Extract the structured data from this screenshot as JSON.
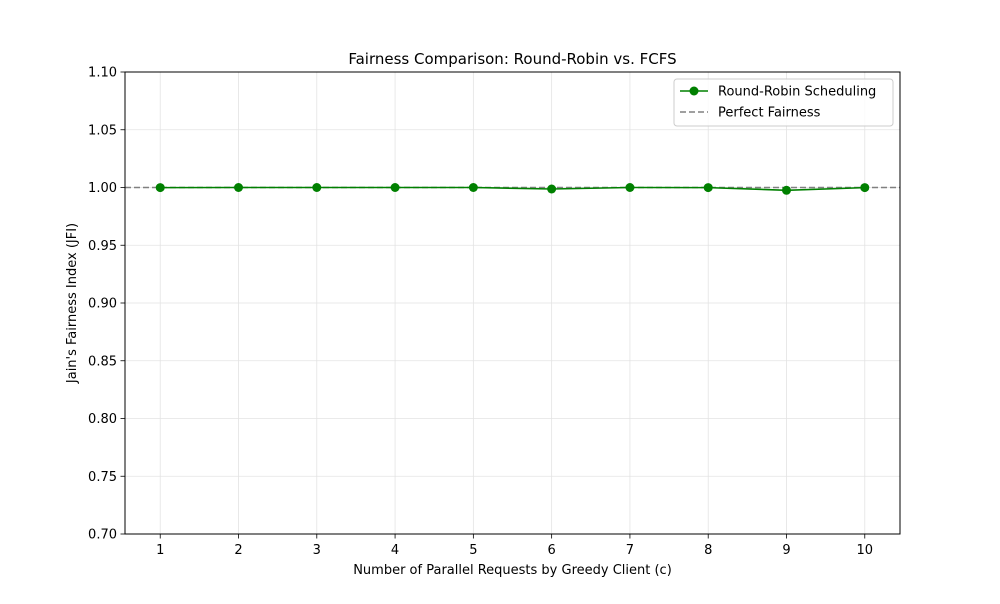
{
  "chart_data": {
    "type": "line",
    "title": "Fairness Comparison: Round-Robin vs. FCFS",
    "xlabel": "Number of Parallel Requests by Greedy Client (c)",
    "ylabel": "Jain's Fairness Index (JFI)",
    "x": [
      1,
      2,
      3,
      4,
      5,
      6,
      7,
      8,
      9,
      10
    ],
    "xlim": [
      0.55,
      10.45
    ],
    "ylim": [
      0.7,
      1.1
    ],
    "xticks": [
      "1",
      "2",
      "3",
      "4",
      "5",
      "6",
      "7",
      "8",
      "9",
      "10"
    ],
    "yticks": [
      "0.70",
      "0.75",
      "0.80",
      "0.85",
      "0.90",
      "0.95",
      "1.00",
      "1.05",
      "1.10"
    ],
    "grid": true,
    "legend_position": "top-right",
    "series": [
      {
        "name": "Round-Robin Scheduling",
        "values": [
          0.9999,
          1.0,
          1.0,
          1.0,
          1.0,
          0.9987,
          1.0,
          0.9999,
          0.9976,
          0.9999
        ],
        "color": "#008000",
        "style": "solid",
        "marker": "circle"
      }
    ],
    "reference_lines": [
      {
        "name": "Perfect Fairness",
        "y": 1.0,
        "color": "#808080",
        "style": "dashed"
      }
    ]
  }
}
